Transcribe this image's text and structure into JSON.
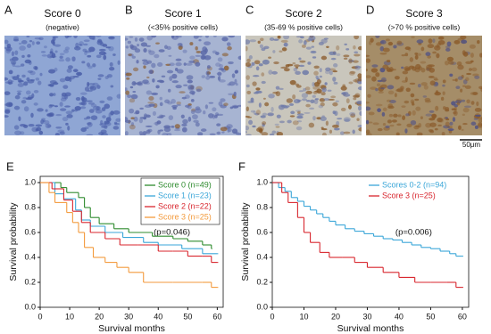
{
  "panels": [
    {
      "label": "A",
      "title": "Score 0",
      "subtitle": "(negative)"
    },
    {
      "label": "B",
      "title": "Score 1",
      "subtitle": "(<35% positive cells)"
    },
    {
      "label": "C",
      "title": "Score 2",
      "subtitle": "(35-69 % positive cells)"
    },
    {
      "label": "D",
      "title": "Score 3",
      "subtitle": "(>70 % positive cells)"
    }
  ],
  "scale_bar": "50μm",
  "chart_data": [
    {
      "type": "line",
      "panel_label": "E",
      "xlabel": "Survival months",
      "ylabel": "Survival probability",
      "annotation": "(p=0.046)",
      "xlim": [
        0,
        62
      ],
      "ylim": [
        0,
        1.05
      ],
      "xticks": [
        0,
        10,
        20,
        30,
        40,
        50,
        60
      ],
      "yticks": [
        {
          "value": 0,
          "label": "0.0"
        },
        0.2,
        0.4,
        0.6,
        0.8,
        {
          "value": 1,
          "label": "1.0"
        }
      ],
      "legend": "upper right",
      "legend_box": true,
      "series": [
        {
          "name": "Score 0 (n=49)",
          "color": "#2e8b2e",
          "x": [
            0,
            7,
            9,
            13,
            15,
            17,
            20,
            25,
            30,
            38,
            45,
            50,
            55,
            58
          ],
          "values": [
            1.0,
            0.96,
            0.92,
            0.88,
            0.8,
            0.72,
            0.67,
            0.63,
            0.6,
            0.57,
            0.55,
            0.53,
            0.5,
            0.47
          ]
        },
        {
          "name": "Score 1 (n=23)",
          "color": "#3aa6d8",
          "x": [
            0,
            5,
            8,
            12,
            14,
            17,
            22,
            28,
            35,
            40,
            48,
            55,
            60
          ],
          "values": [
            1.0,
            0.91,
            0.87,
            0.78,
            0.7,
            0.65,
            0.6,
            0.56,
            0.52,
            0.5,
            0.47,
            0.43,
            0.43
          ]
        },
        {
          "name": "Score 2 (n=22)",
          "color": "#d8262e",
          "x": [
            0,
            4,
            8,
            11,
            14,
            17,
            22,
            27,
            33,
            40,
            45,
            50,
            55,
            58,
            60
          ],
          "values": [
            1.0,
            0.95,
            0.86,
            0.77,
            0.68,
            0.6,
            0.55,
            0.5,
            0.5,
            0.45,
            0.45,
            0.41,
            0.41,
            0.36,
            0.36
          ]
        },
        {
          "name": "Score 3 (n=25)",
          "color": "#f39a3c",
          "x": [
            0,
            3,
            5,
            9,
            11,
            13,
            15,
            18,
            22,
            26,
            30,
            35,
            45,
            55,
            58,
            60
          ],
          "values": [
            1.0,
            0.92,
            0.84,
            0.76,
            0.68,
            0.6,
            0.48,
            0.4,
            0.36,
            0.32,
            0.28,
            0.2,
            0.2,
            0.2,
            0.16,
            0.16
          ]
        }
      ]
    },
    {
      "type": "line",
      "panel_label": "F",
      "xlabel": "Survival months",
      "ylabel": "Survival probability",
      "annotation": "(p=0.006)",
      "xlim": [
        0,
        62
      ],
      "ylim": [
        0,
        1.05
      ],
      "xticks": [
        0,
        10,
        20,
        30,
        40,
        50,
        60
      ],
      "yticks": [
        {
          "value": 0,
          "label": "0.0"
        },
        0.2,
        0.4,
        0.6,
        0.8,
        {
          "value": 1,
          "label": "1.0"
        }
      ],
      "legend": "upper right",
      "legend_box": false,
      "series": [
        {
          "name": "Scores 0-2 (n=94)",
          "color": "#3aa6d8",
          "x": [
            0,
            2,
            4,
            6,
            8,
            10,
            12,
            14,
            16,
            18,
            20,
            23,
            26,
            29,
            32,
            35,
            38,
            41,
            44,
            47,
            50,
            53,
            56,
            58,
            60
          ],
          "values": [
            1.0,
            0.96,
            0.93,
            0.88,
            0.85,
            0.81,
            0.78,
            0.75,
            0.72,
            0.69,
            0.66,
            0.63,
            0.61,
            0.59,
            0.57,
            0.55,
            0.54,
            0.52,
            0.5,
            0.48,
            0.47,
            0.45,
            0.43,
            0.41,
            0.41
          ]
        },
        {
          "name": "Score 3 (n=25)",
          "color": "#d8262e",
          "x": [
            0,
            3,
            5,
            8,
            10,
            12,
            15,
            18,
            22,
            26,
            30,
            35,
            40,
            45,
            50,
            55,
            58,
            60
          ],
          "values": [
            1.0,
            0.92,
            0.84,
            0.72,
            0.6,
            0.52,
            0.44,
            0.4,
            0.4,
            0.36,
            0.32,
            0.28,
            0.24,
            0.2,
            0.2,
            0.2,
            0.16,
            0.16
          ]
        }
      ]
    }
  ]
}
